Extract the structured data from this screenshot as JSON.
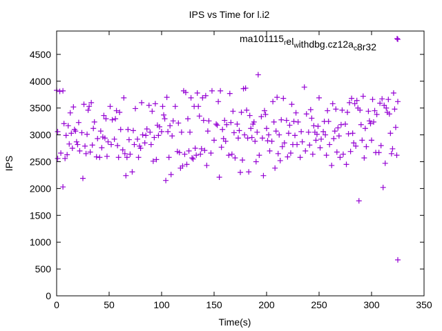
{
  "chart_data": {
    "type": "scatter",
    "title": "IPS vs Time for l.i2",
    "xlabel": "Time(s)",
    "ylabel": "IPS",
    "xlim": [
      0,
      350
    ],
    "ylim": [
      0,
      4935
    ],
    "xticks": [
      0,
      50,
      100,
      150,
      200,
      250,
      300,
      350
    ],
    "yticks": [
      0,
      500,
      1000,
      1500,
      2000,
      2500,
      3000,
      3500,
      4000,
      4500
    ],
    "grid": false,
    "legend_position": "top-right",
    "series": [
      {
        "name": "ma101115_rel_withdbg.cz12a_c8r32",
        "color": "#9400d3",
        "marker": "plus",
        "points": [
          [
            0,
            3830
          ],
          [
            1,
            3060
          ],
          [
            1,
            2560
          ],
          [
            3,
            3810
          ],
          [
            4,
            2660
          ],
          [
            6,
            3820
          ],
          [
            6,
            2030
          ],
          [
            7,
            3210
          ],
          [
            8,
            2560
          ],
          [
            9,
            2990
          ],
          [
            10,
            2630
          ],
          [
            11,
            3170
          ],
          [
            12,
            2830
          ],
          [
            13,
            3410
          ],
          [
            14,
            3030
          ],
          [
            15,
            2750
          ],
          [
            16,
            3520
          ],
          [
            17,
            3100
          ],
          [
            18,
            3070
          ],
          [
            19,
            2870
          ],
          [
            20,
            2820
          ],
          [
            21,
            3230
          ],
          [
            22,
            2700
          ],
          [
            24,
            3040
          ],
          [
            25,
            2190
          ],
          [
            26,
            3570
          ],
          [
            27,
            2790
          ],
          [
            28,
            2650
          ],
          [
            29,
            3010
          ],
          [
            30,
            3460
          ],
          [
            31,
            3530
          ],
          [
            32,
            2680
          ],
          [
            33,
            3600
          ],
          [
            34,
            2810
          ],
          [
            35,
            3120
          ],
          [
            36,
            3240
          ],
          [
            38,
            2590
          ],
          [
            39,
            2930
          ],
          [
            41,
            2580
          ],
          [
            42,
            3070
          ],
          [
            43,
            2760
          ],
          [
            44,
            2960
          ],
          [
            45,
            3360
          ],
          [
            46,
            2940
          ],
          [
            47,
            3300
          ],
          [
            48,
            2600
          ],
          [
            49,
            2870
          ],
          [
            51,
            3530
          ],
          [
            52,
            2820
          ],
          [
            53,
            3280
          ],
          [
            55,
            2920
          ],
          [
            56,
            3300
          ],
          [
            57,
            3450
          ],
          [
            58,
            2800
          ],
          [
            59,
            2580
          ],
          [
            60,
            3420
          ],
          [
            61,
            3100
          ],
          [
            63,
            2720
          ],
          [
            64,
            3690
          ],
          [
            65,
            2650
          ],
          [
            66,
            2240
          ],
          [
            67,
            2580
          ],
          [
            68,
            3100
          ],
          [
            69,
            2910
          ],
          [
            70,
            2640
          ],
          [
            72,
            2310
          ],
          [
            73,
            3080
          ],
          [
            74,
            2820
          ],
          [
            75,
            3490
          ],
          [
            77,
            2920
          ],
          [
            78,
            2580
          ],
          [
            79,
            2790
          ],
          [
            80,
            2750
          ],
          [
            81,
            3600
          ],
          [
            82,
            3000
          ],
          [
            84,
            2850
          ],
          [
            85,
            2990
          ],
          [
            86,
            3110
          ],
          [
            88,
            3550
          ],
          [
            89,
            3050
          ],
          [
            90,
            2820
          ],
          [
            91,
            3440
          ],
          [
            92,
            2510
          ],
          [
            93,
            2950
          ],
          [
            94,
            3580
          ],
          [
            95,
            2540
          ],
          [
            96,
            3180
          ],
          [
            97,
            2990
          ],
          [
            98,
            3150
          ],
          [
            100,
            3060
          ],
          [
            101,
            3530
          ],
          [
            102,
            3370
          ],
          [
            103,
            3300
          ],
          [
            104,
            2150
          ],
          [
            105,
            3700
          ],
          [
            106,
            3060
          ],
          [
            107,
            2580
          ],
          [
            108,
            3170
          ],
          [
            109,
            2260
          ],
          [
            110,
            2980
          ],
          [
            111,
            3260
          ],
          [
            113,
            3530
          ],
          [
            115,
            2690
          ],
          [
            116,
            3220
          ],
          [
            117,
            2670
          ],
          [
            118,
            2380
          ],
          [
            119,
            3050
          ],
          [
            120,
            2420
          ],
          [
            121,
            3820
          ],
          [
            122,
            2640
          ],
          [
            123,
            3790
          ],
          [
            124,
            2450
          ],
          [
            125,
            3300
          ],
          [
            126,
            2700
          ],
          [
            127,
            3050
          ],
          [
            128,
            3690
          ],
          [
            129,
            2570
          ],
          [
            130,
            2550
          ],
          [
            131,
            3530
          ],
          [
            132,
            2750
          ],
          [
            133,
            2620
          ],
          [
            134,
            3780
          ],
          [
            135,
            3530
          ],
          [
            136,
            3350
          ],
          [
            137,
            2640
          ],
          [
            138,
            2740
          ],
          [
            139,
            3690
          ],
          [
            140,
            3270
          ],
          [
            141,
            2710
          ],
          [
            142,
            3730
          ],
          [
            143,
            2430
          ],
          [
            144,
            3070
          ],
          [
            145,
            3260
          ],
          [
            147,
            2660
          ],
          [
            148,
            3820
          ],
          [
            150,
            2900
          ],
          [
            152,
            3200
          ],
          [
            153,
            3180
          ],
          [
            154,
            3620
          ],
          [
            155,
            2210
          ],
          [
            156,
            3820
          ],
          [
            157,
            2770
          ],
          [
            158,
            3100
          ],
          [
            159,
            2930
          ],
          [
            160,
            3270
          ],
          [
            161,
            2880
          ],
          [
            162,
            3190
          ],
          [
            164,
            2620
          ],
          [
            165,
            3770
          ],
          [
            166,
            3230
          ],
          [
            167,
            2640
          ],
          [
            168,
            3440
          ],
          [
            169,
            3040
          ],
          [
            170,
            2570
          ],
          [
            172,
            3200
          ],
          [
            173,
            2940
          ],
          [
            174,
            3080
          ],
          [
            175,
            2300
          ],
          [
            176,
            3420
          ],
          [
            177,
            2530
          ],
          [
            178,
            3860
          ],
          [
            179,
            3000
          ],
          [
            180,
            3870
          ],
          [
            181,
            3460
          ],
          [
            182,
            2940
          ],
          [
            183,
            2310
          ],
          [
            184,
            3360
          ],
          [
            185,
            3120
          ],
          [
            186,
            2950
          ],
          [
            187,
            3200
          ],
          [
            188,
            3240
          ],
          [
            189,
            2880
          ],
          [
            190,
            2500
          ],
          [
            191,
            3050
          ],
          [
            192,
            4120
          ],
          [
            193,
            2620
          ],
          [
            195,
            3340
          ],
          [
            196,
            2940
          ],
          [
            197,
            2240
          ],
          [
            198,
            3450
          ],
          [
            199,
            3380
          ],
          [
            200,
            3120
          ],
          [
            201,
            2890
          ],
          [
            202,
            3000
          ],
          [
            203,
            2700
          ],
          [
            205,
            2880
          ],
          [
            206,
            3620
          ],
          [
            207,
            3240
          ],
          [
            208,
            2380
          ],
          [
            209,
            3070
          ],
          [
            210,
            3700
          ],
          [
            211,
            2650
          ],
          [
            212,
            3000
          ],
          [
            213,
            2520
          ],
          [
            214,
            3280
          ],
          [
            215,
            2780
          ],
          [
            216,
            3680
          ],
          [
            217,
            2850
          ],
          [
            219,
            3270
          ],
          [
            220,
            2590
          ],
          [
            221,
            3030
          ],
          [
            222,
            3180
          ],
          [
            223,
            2660
          ],
          [
            224,
            3570
          ],
          [
            225,
            2820
          ],
          [
            226,
            3250
          ],
          [
            227,
            2990
          ],
          [
            228,
            3410
          ],
          [
            229,
            2820
          ],
          [
            230,
            3240
          ],
          [
            232,
            2580
          ],
          [
            233,
            3060
          ],
          [
            234,
            2870
          ],
          [
            236,
            3890
          ],
          [
            237,
            2700
          ],
          [
            238,
            3390
          ],
          [
            240,
            3050
          ],
          [
            241,
            2810
          ],
          [
            242,
            3470
          ],
          [
            243,
            3310
          ],
          [
            244,
            2640
          ],
          [
            245,
            3170
          ],
          [
            246,
            3050
          ],
          [
            247,
            2900
          ],
          [
            248,
            3010
          ],
          [
            249,
            3160
          ],
          [
            250,
            3690
          ],
          [
            251,
            2760
          ],
          [
            252,
            2920
          ],
          [
            254,
            3060
          ],
          [
            255,
            3250
          ],
          [
            256,
            3000
          ],
          [
            257,
            2620
          ],
          [
            258,
            3450
          ],
          [
            259,
            3250
          ],
          [
            260,
            2820
          ],
          [
            262,
            2430
          ],
          [
            263,
            3580
          ],
          [
            264,
            2930
          ],
          [
            265,
            3070
          ],
          [
            266,
            3480
          ],
          [
            267,
            2680
          ],
          [
            268,
            3130
          ],
          [
            269,
            2980
          ],
          [
            270,
            2580
          ],
          [
            271,
            3190
          ],
          [
            272,
            3460
          ],
          [
            273,
            2640
          ],
          [
            275,
            3200
          ],
          [
            276,
            2450
          ],
          [
            277,
            3420
          ],
          [
            278,
            3020
          ],
          [
            279,
            3600
          ],
          [
            280,
            2690
          ],
          [
            281,
            3680
          ],
          [
            282,
            3030
          ],
          [
            283,
            2850
          ],
          [
            284,
            3580
          ],
          [
            285,
            2790
          ],
          [
            286,
            3640
          ],
          [
            287,
            3500
          ],
          [
            288,
            1770
          ],
          [
            289,
            3460
          ],
          [
            290,
            3190
          ],
          [
            291,
            2900
          ],
          [
            292,
            3720
          ],
          [
            293,
            2570
          ],
          [
            294,
            3120
          ],
          [
            295,
            2780
          ],
          [
            297,
            3440
          ],
          [
            298,
            3260
          ],
          [
            299,
            3210
          ],
          [
            300,
            2900
          ],
          [
            301,
            3660
          ],
          [
            302,
            3240
          ],
          [
            303,
            3450
          ],
          [
            304,
            2670
          ],
          [
            305,
            3380
          ],
          [
            307,
            2670
          ],
          [
            308,
            3590
          ],
          [
            309,
            2800
          ],
          [
            310,
            3670
          ],
          [
            311,
            2020
          ],
          [
            312,
            3550
          ],
          [
            313,
            2470
          ],
          [
            314,
            3500
          ],
          [
            315,
            3420
          ],
          [
            316,
            3660
          ],
          [
            317,
            3390
          ],
          [
            318,
            3030
          ],
          [
            319,
            2650
          ],
          [
            320,
            2740
          ],
          [
            321,
            3780
          ],
          [
            322,
            3480
          ],
          [
            323,
            3140
          ],
          [
            324,
            2620
          ],
          [
            325,
            3620
          ],
          [
            325,
            4780
          ],
          [
            325,
            670
          ]
        ]
      }
    ]
  }
}
